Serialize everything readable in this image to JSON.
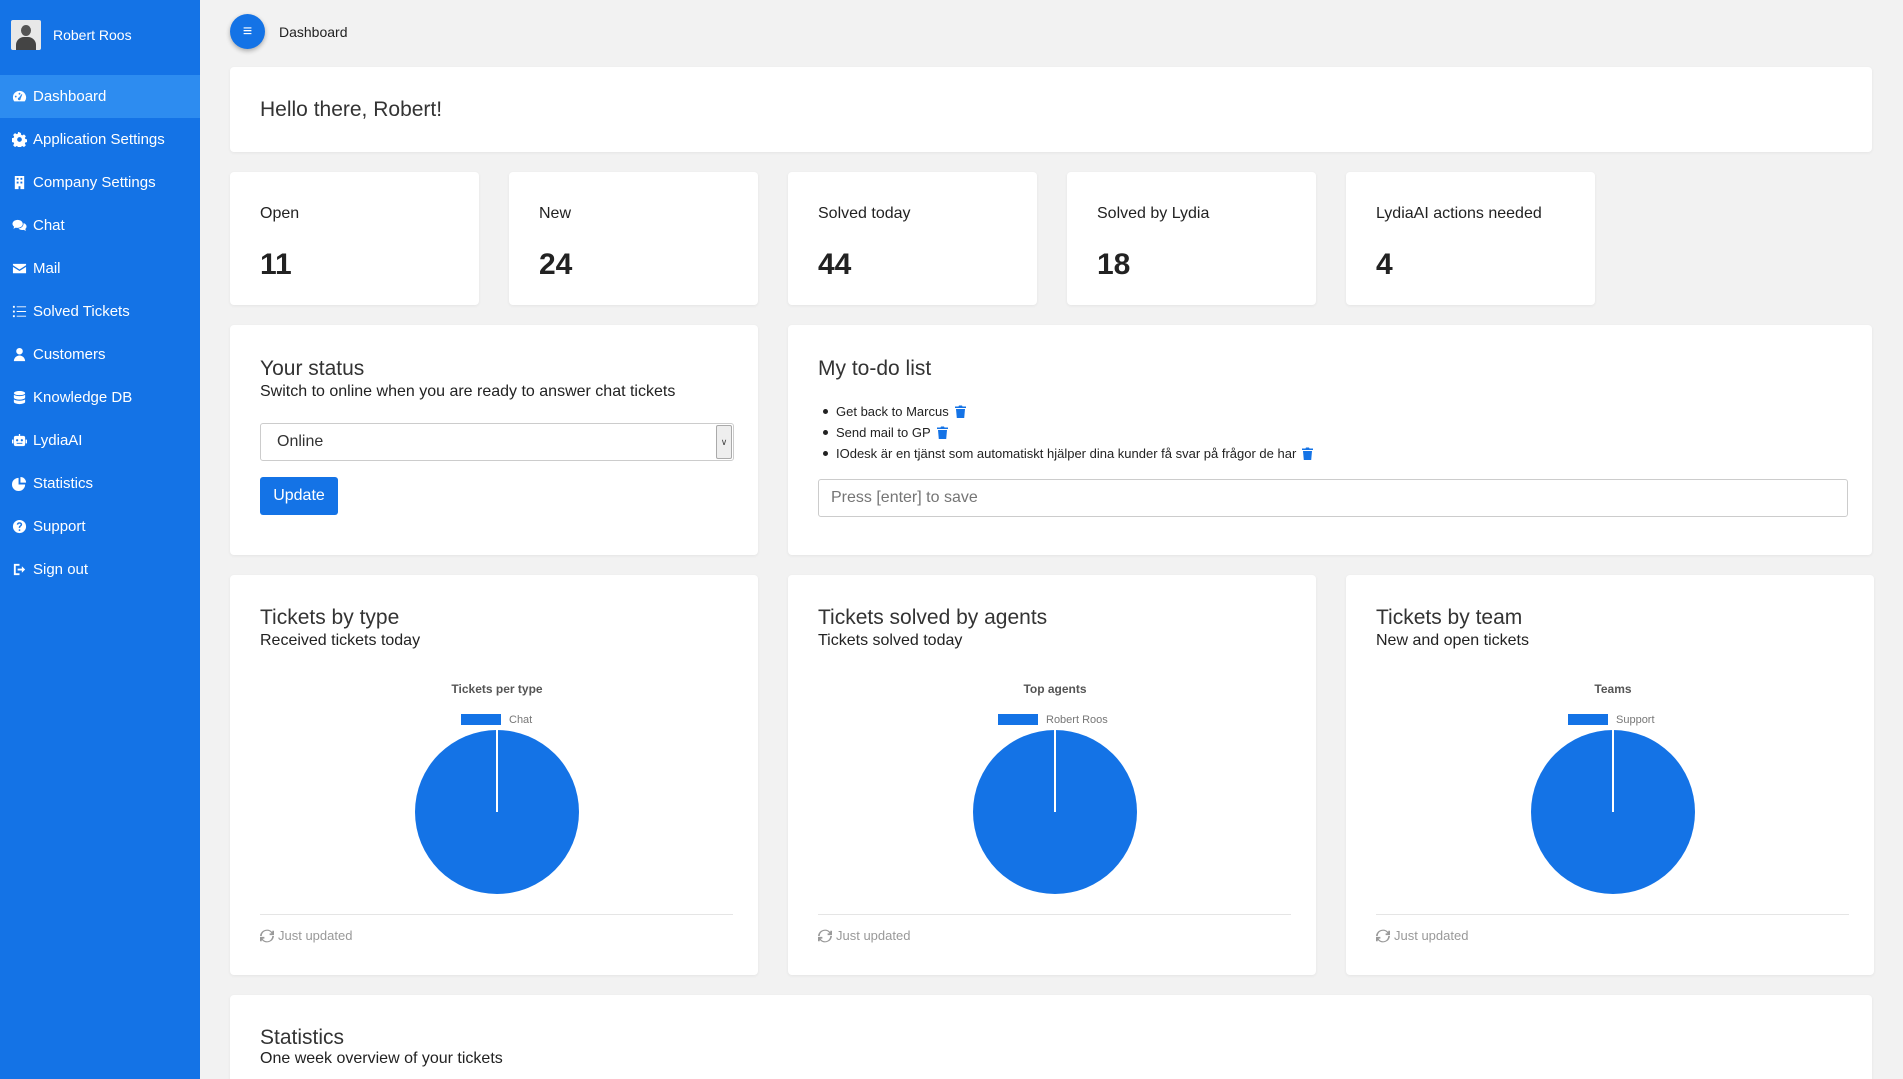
{
  "user": {
    "name": "Robert Roos"
  },
  "sidebar": {
    "items": [
      {
        "label": "Dashboard",
        "icon": "dashboard-icon"
      },
      {
        "label": "Application Settings",
        "icon": "gear-icon"
      },
      {
        "label": "Company Settings",
        "icon": "building-icon"
      },
      {
        "label": "Chat",
        "icon": "chat-icon"
      },
      {
        "label": "Mail",
        "icon": "mail-icon"
      },
      {
        "label": "Solved Tickets",
        "icon": "list-icon"
      },
      {
        "label": "Customers",
        "icon": "user-icon"
      },
      {
        "label": "Knowledge DB",
        "icon": "database-icon"
      },
      {
        "label": "LydiaAI",
        "icon": "robot-icon"
      },
      {
        "label": "Statistics",
        "icon": "pie-chart-icon"
      },
      {
        "label": "Support",
        "icon": "question-icon"
      },
      {
        "label": "Sign out",
        "icon": "sign-out-icon"
      }
    ]
  },
  "header": {
    "breadcrumb": "Dashboard"
  },
  "greeting": "Hello there, Robert!",
  "stats": [
    {
      "label": "Open",
      "value": "11"
    },
    {
      "label": "New",
      "value": "24"
    },
    {
      "label": "Solved today",
      "value": "44"
    },
    {
      "label": "Solved by Lydia",
      "value": "18"
    },
    {
      "label": "LydiaAI actions needed",
      "value": "4"
    }
  ],
  "status": {
    "title": "Your status",
    "subtitle": "Switch to online when you are ready to answer chat tickets",
    "selected": "Online",
    "button": "Update"
  },
  "todo": {
    "title": "My to-do list",
    "items": [
      "Get back to Marcus",
      "Send mail to GP",
      "IOdesk är en tjänst som automatiskt hjälper dina kunder få svar på frågor de har"
    ],
    "placeholder": "Press [enter] to save"
  },
  "charts": [
    {
      "title": "Tickets by type",
      "subtitle": "Received tickets today",
      "updated": "Just updated"
    },
    {
      "title": "Tickets solved by agents",
      "subtitle": "Tickets solved today",
      "updated": "Just updated"
    },
    {
      "title": "Tickets by team",
      "subtitle": "New and open tickets",
      "updated": "Just updated"
    }
  ],
  "chart_data": [
    {
      "type": "pie",
      "title": "Tickets per type",
      "categories": [
        "Chat"
      ],
      "values": [
        100
      ],
      "legend": "top",
      "colors": [
        "#1473e6"
      ]
    },
    {
      "type": "pie",
      "title": "Top agents",
      "categories": [
        "Robert Roos"
      ],
      "values": [
        100
      ],
      "legend": "top",
      "colors": [
        "#1473e6"
      ]
    },
    {
      "type": "pie",
      "title": "Teams",
      "categories": [
        "Support"
      ],
      "values": [
        100
      ],
      "legend": "top",
      "colors": [
        "#1473e6"
      ]
    }
  ],
  "statistics": {
    "title": "Statistics",
    "subtitle": "One week overview of your tickets"
  },
  "colors": {
    "brand": "#1473e6",
    "active": "#2d8cf0",
    "background": "#f2f2f2"
  }
}
